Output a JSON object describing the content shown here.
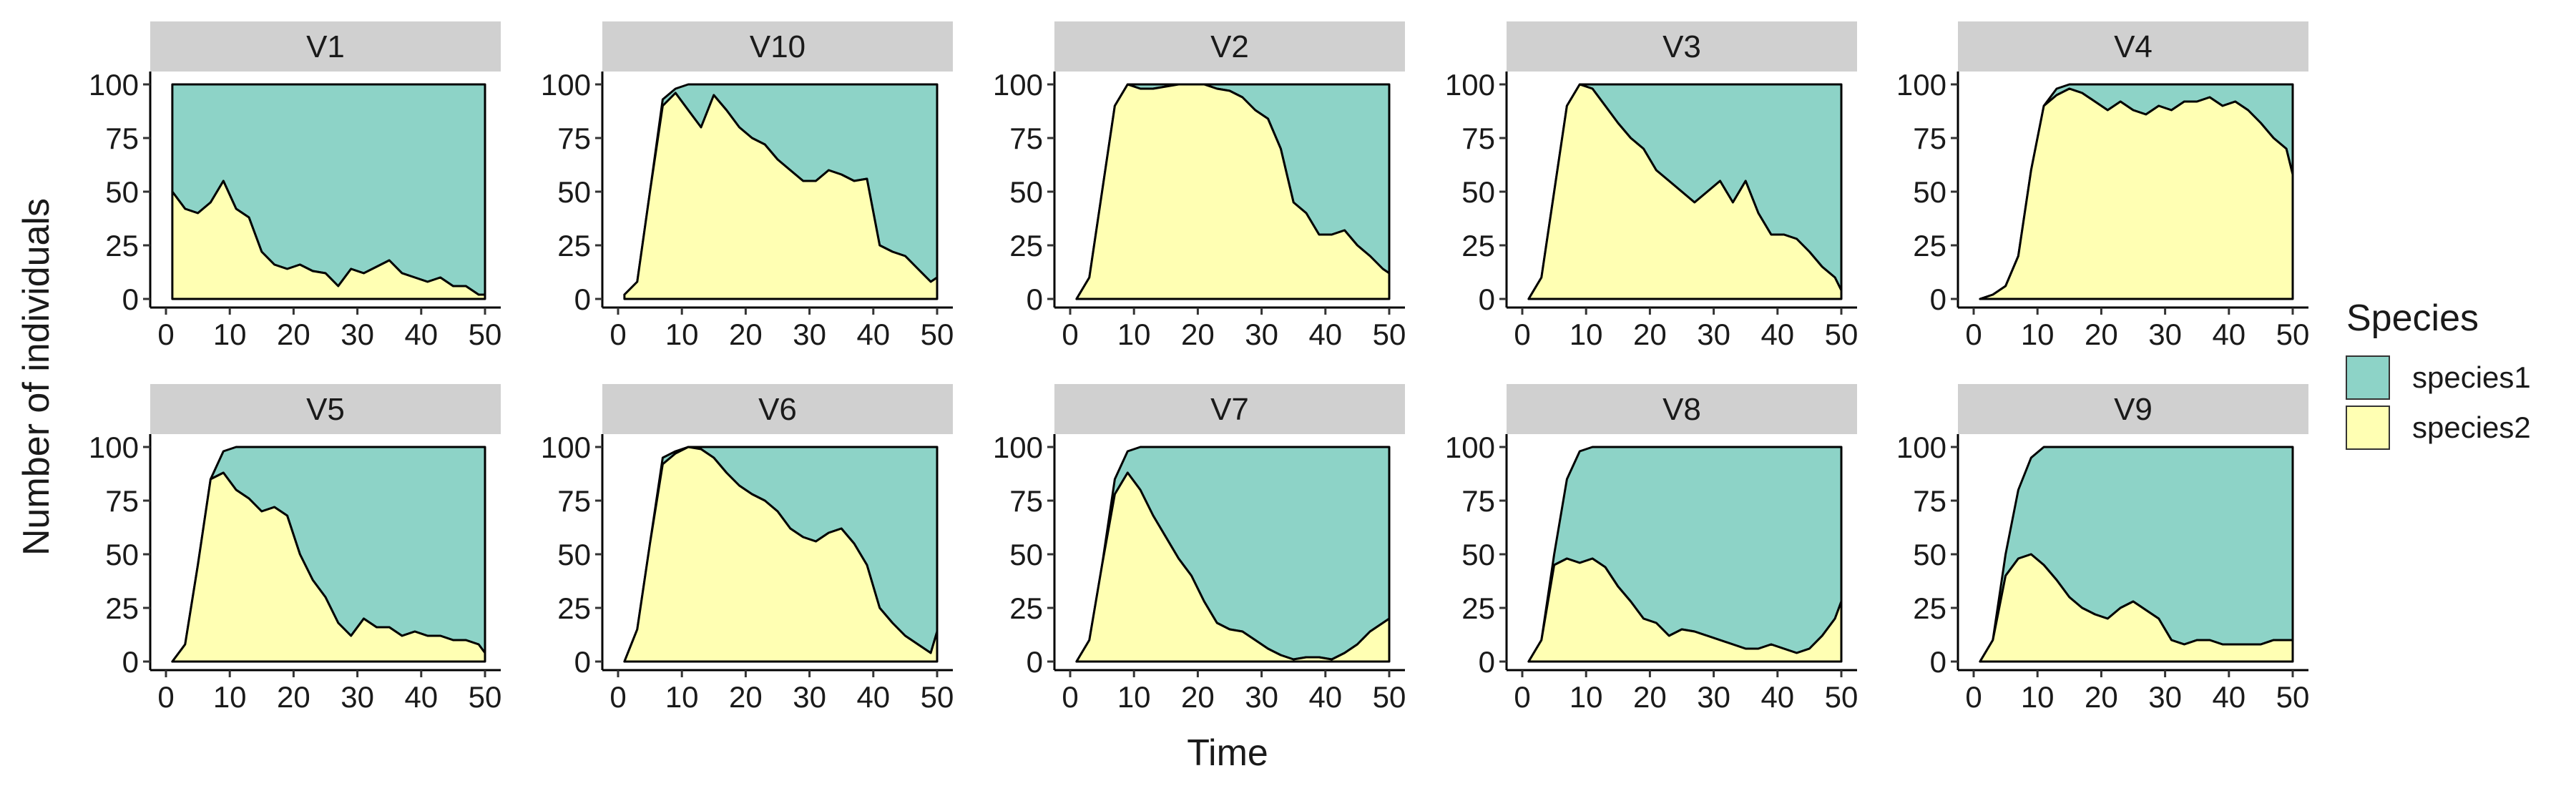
{
  "chart_data": {
    "type": "area",
    "stacked": true,
    "facet_layout": "2 rows x 5 columns",
    "xlabel": "Time",
    "ylabel": "Number of individuals",
    "xlim": [
      0,
      50
    ],
    "ylim": [
      0,
      100
    ],
    "x_ticks": [
      "0",
      "10",
      "20",
      "30",
      "40",
      "50"
    ],
    "y_ticks": [
      "0",
      "25",
      "50",
      "75",
      "100"
    ],
    "grid": false,
    "legend": {
      "title": "Species",
      "position": "right",
      "entries": [
        {
          "name": "species1",
          "color": "#8dd3c7"
        },
        {
          "name": "species2",
          "color": "#ffffb3"
        }
      ]
    },
    "colors": {
      "species1": "#8dd3c7",
      "species2": "#ffffb3",
      "strip": "#d0d0d0",
      "line": "#000000"
    },
    "x": [
      1,
      3,
      5,
      7,
      9,
      11,
      13,
      15,
      17,
      19,
      21,
      23,
      25,
      27,
      29,
      31,
      33,
      35,
      37,
      39,
      41,
      43,
      45,
      47,
      49,
      50
    ],
    "panels": [
      {
        "label": "V1",
        "total": [
          100,
          100,
          100,
          100,
          100,
          100,
          100,
          100,
          100,
          100,
          100,
          100,
          100,
          100,
          100,
          100,
          100,
          100,
          100,
          100,
          100,
          100,
          100,
          100,
          100,
          100
        ],
        "species2": [
          50,
          42,
          40,
          45,
          55,
          42,
          38,
          22,
          16,
          14,
          16,
          13,
          12,
          6,
          14,
          12,
          15,
          18,
          12,
          10,
          8,
          10,
          6,
          6,
          2,
          2
        ]
      },
      {
        "label": "V10",
        "total": [
          2,
          8,
          50,
          93,
          98,
          100,
          100,
          100,
          100,
          100,
          100,
          100,
          100,
          100,
          100,
          100,
          100,
          100,
          100,
          100,
          100,
          100,
          100,
          100,
          100,
          100
        ],
        "species2": [
          2,
          8,
          50,
          90,
          96,
          88,
          80,
          95,
          88,
          80,
          75,
          72,
          65,
          60,
          55,
          55,
          60,
          58,
          55,
          56,
          25,
          22,
          20,
          14,
          8,
          10
        ]
      },
      {
        "label": "V2",
        "total": [
          0,
          10,
          50,
          90,
          100,
          100,
          100,
          100,
          100,
          100,
          100,
          100,
          100,
          100,
          100,
          100,
          100,
          100,
          100,
          100,
          100,
          100,
          100,
          100,
          100,
          100
        ],
        "species2": [
          0,
          10,
          50,
          90,
          100,
          98,
          98,
          99,
          100,
          100,
          100,
          98,
          97,
          94,
          88,
          84,
          70,
          45,
          40,
          30,
          30,
          32,
          25,
          20,
          14,
          12
        ]
      },
      {
        "label": "V3",
        "total": [
          0,
          10,
          50,
          90,
          100,
          100,
          100,
          100,
          100,
          100,
          100,
          100,
          100,
          100,
          100,
          100,
          100,
          100,
          100,
          100,
          100,
          100,
          100,
          100,
          100,
          100
        ],
        "species2": [
          0,
          10,
          50,
          90,
          100,
          98,
          90,
          82,
          75,
          70,
          60,
          55,
          50,
          45,
          50,
          55,
          45,
          55,
          40,
          30,
          30,
          28,
          22,
          15,
          10,
          4
        ]
      },
      {
        "label": "V4",
        "total": [
          0,
          2,
          6,
          20,
          60,
          90,
          98,
          100,
          100,
          100,
          100,
          100,
          100,
          100,
          100,
          100,
          100,
          100,
          100,
          100,
          100,
          100,
          100,
          100,
          100,
          100
        ],
        "species2": [
          0,
          2,
          6,
          20,
          60,
          90,
          95,
          98,
          96,
          92,
          88,
          92,
          88,
          86,
          90,
          88,
          92,
          92,
          94,
          90,
          92,
          88,
          82,
          75,
          70,
          58
        ]
      },
      {
        "label": "V5",
        "total": [
          0,
          8,
          45,
          85,
          98,
          100,
          100,
          100,
          100,
          100,
          100,
          100,
          100,
          100,
          100,
          100,
          100,
          100,
          100,
          100,
          100,
          100,
          100,
          100,
          100,
          100
        ],
        "species2": [
          0,
          8,
          45,
          85,
          88,
          80,
          76,
          70,
          72,
          68,
          50,
          38,
          30,
          18,
          12,
          20,
          16,
          16,
          12,
          14,
          12,
          12,
          10,
          10,
          8,
          4
        ]
      },
      {
        "label": "V6",
        "total": [
          0,
          15,
          55,
          95,
          98,
          100,
          100,
          100,
          100,
          100,
          100,
          100,
          100,
          100,
          100,
          100,
          100,
          100,
          100,
          100,
          100,
          100,
          100,
          100,
          100,
          100
        ],
        "species2": [
          0,
          15,
          55,
          92,
          97,
          100,
          99,
          95,
          88,
          82,
          78,
          75,
          70,
          62,
          58,
          56,
          60,
          62,
          55,
          45,
          25,
          18,
          12,
          8,
          4,
          14
        ]
      },
      {
        "label": "V7",
        "total": [
          0,
          10,
          45,
          85,
          98,
          100,
          100,
          100,
          100,
          100,
          100,
          100,
          100,
          100,
          100,
          100,
          100,
          100,
          100,
          100,
          100,
          100,
          100,
          100,
          100,
          100
        ],
        "species2": [
          0,
          10,
          45,
          78,
          88,
          80,
          68,
          58,
          48,
          40,
          28,
          18,
          15,
          14,
          10,
          6,
          3,
          1,
          2,
          2,
          1,
          4,
          8,
          14,
          18,
          20
        ]
      },
      {
        "label": "V8",
        "total": [
          0,
          10,
          50,
          85,
          98,
          100,
          100,
          100,
          100,
          100,
          100,
          100,
          100,
          100,
          100,
          100,
          100,
          100,
          100,
          100,
          100,
          100,
          100,
          100,
          100,
          100
        ],
        "species2": [
          0,
          10,
          45,
          48,
          46,
          48,
          44,
          35,
          28,
          20,
          18,
          12,
          15,
          14,
          12,
          10,
          8,
          6,
          6,
          8,
          6,
          4,
          6,
          12,
          20,
          28
        ]
      },
      {
        "label": "V9",
        "total": [
          0,
          10,
          50,
          80,
          95,
          100,
          100,
          100,
          100,
          100,
          100,
          100,
          100,
          100,
          100,
          100,
          100,
          100,
          100,
          100,
          100,
          100,
          100,
          100,
          100,
          100
        ],
        "species2": [
          0,
          10,
          40,
          48,
          50,
          45,
          38,
          30,
          25,
          22,
          20,
          25,
          28,
          24,
          20,
          10,
          8,
          10,
          10,
          8,
          8,
          8,
          8,
          10,
          10,
          10
        ]
      }
    ]
  }
}
